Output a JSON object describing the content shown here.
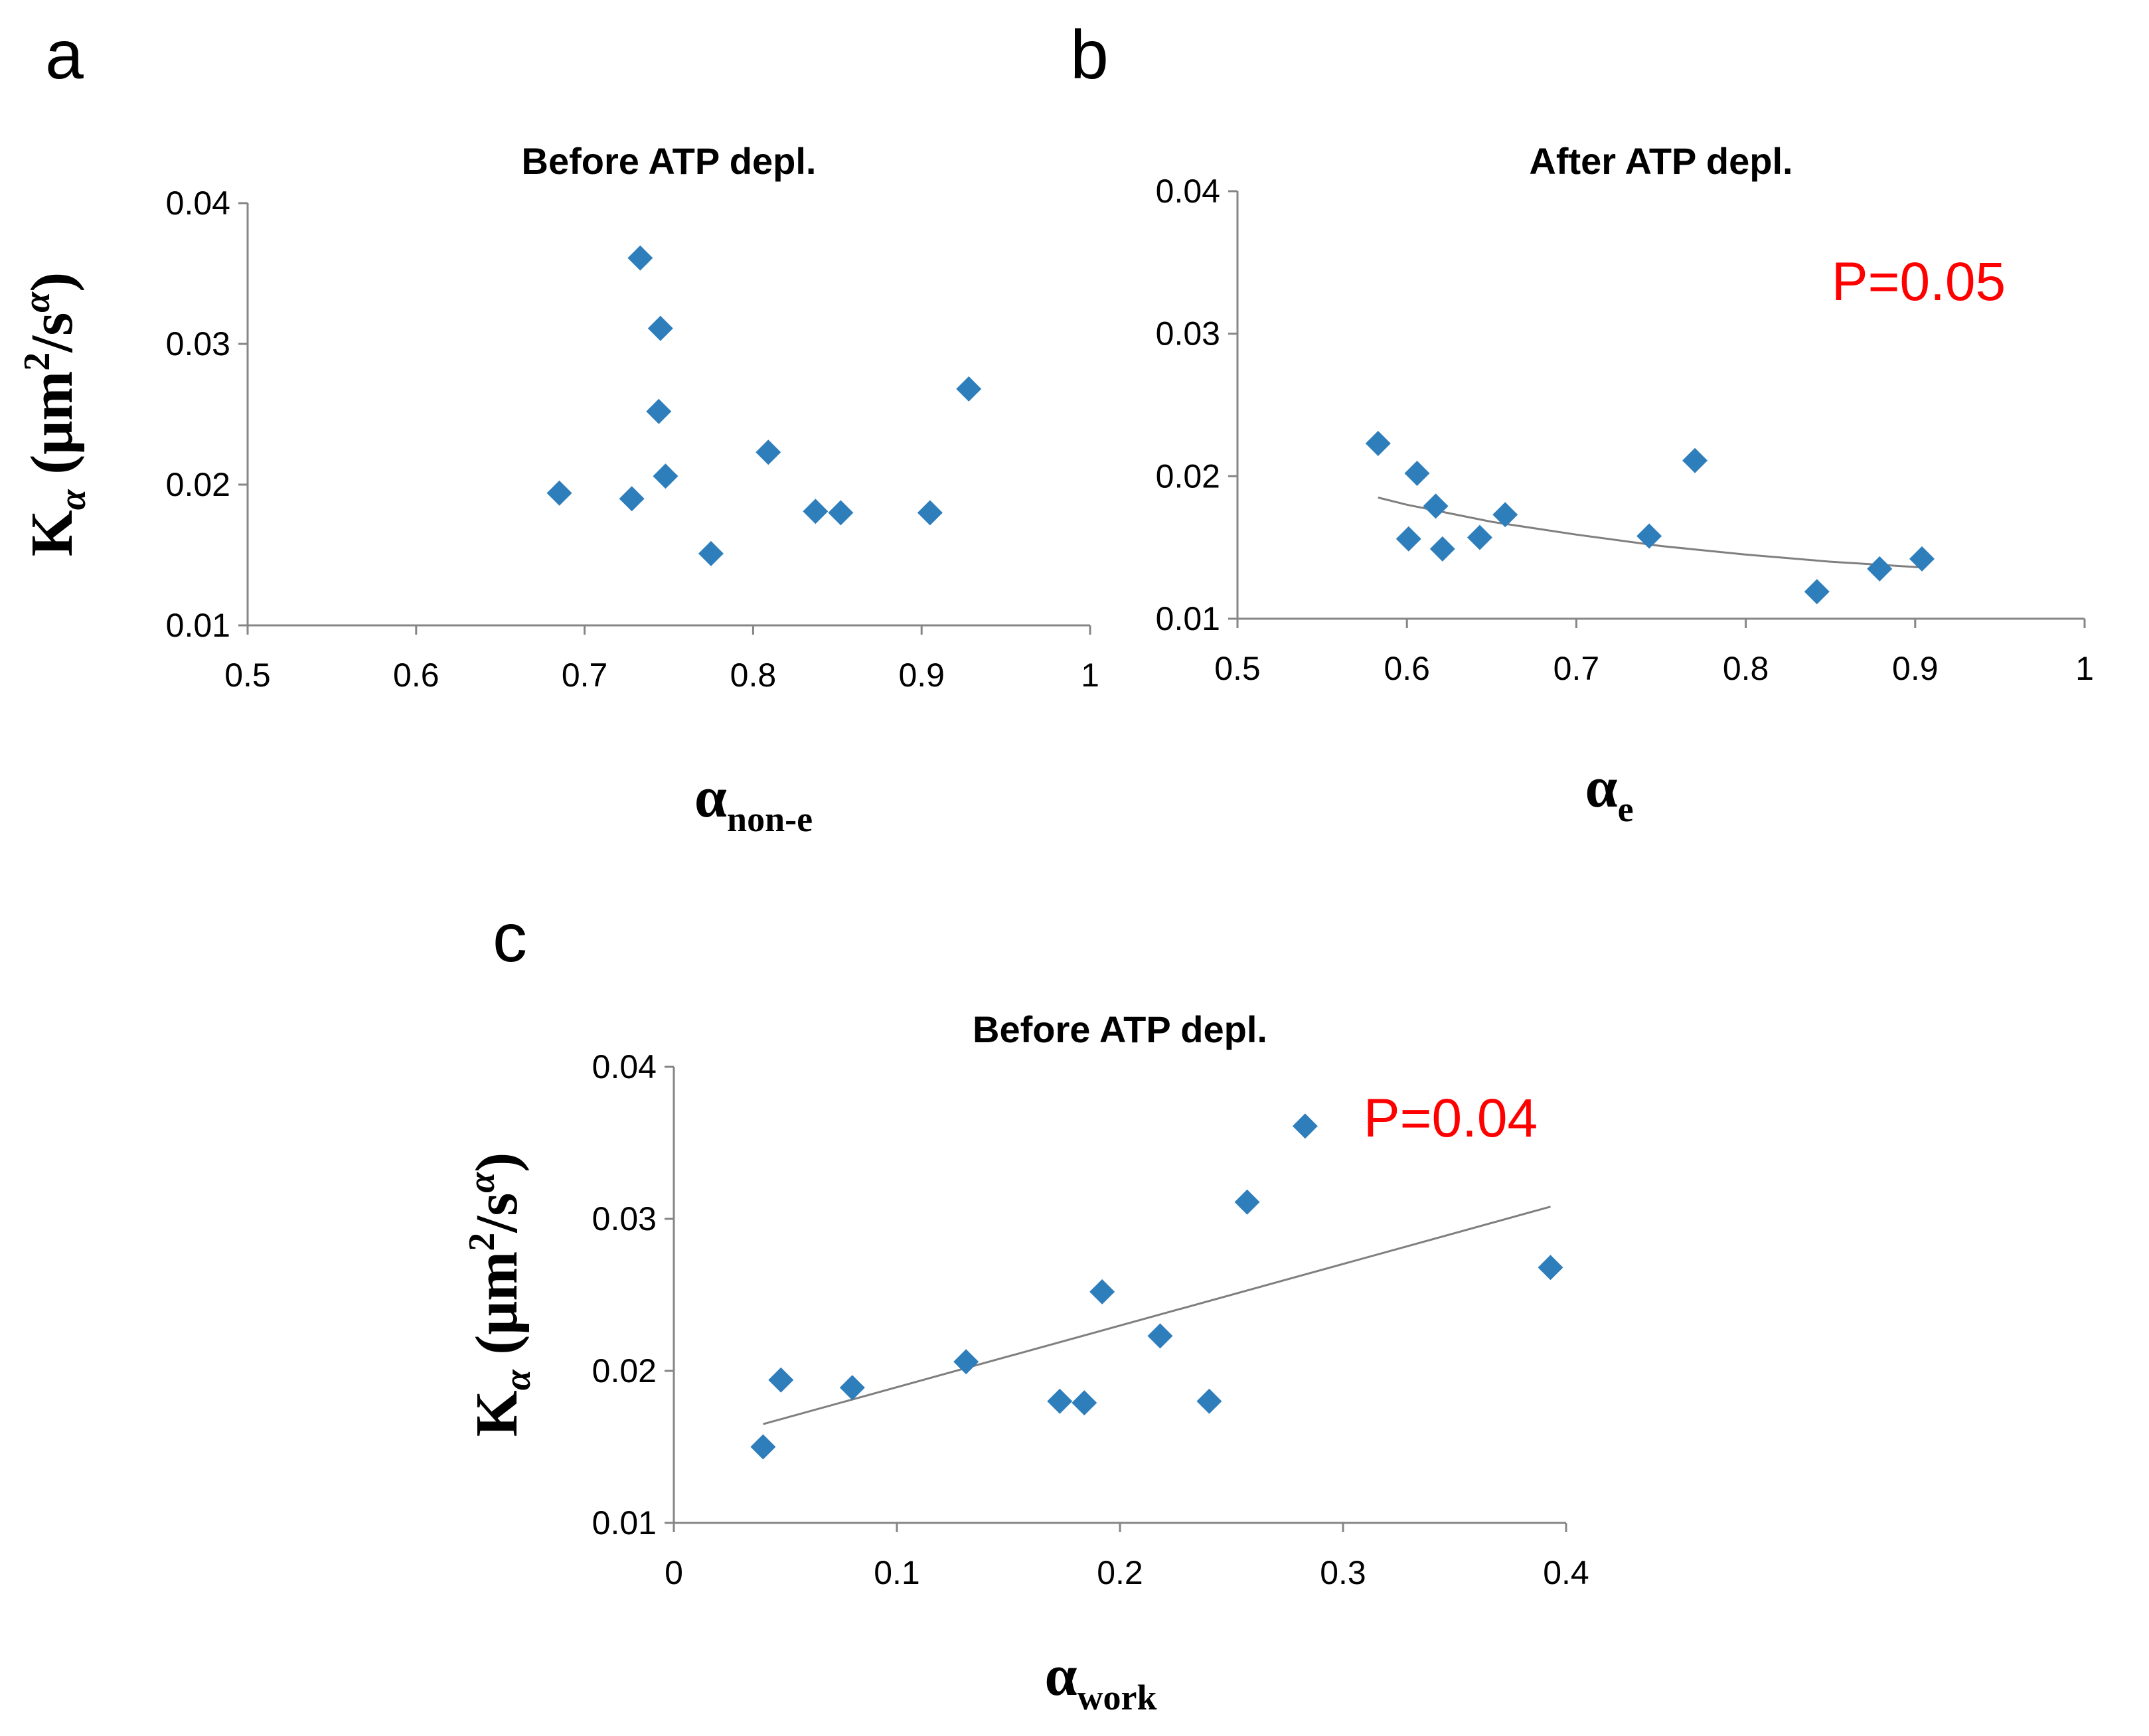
{
  "colors": {
    "marker": "#2e7ebc",
    "trend": "#7f7f7f",
    "annotation": "#ff0000",
    "axis": "#868686"
  },
  "chart_data": [
    {
      "panel": "a",
      "type": "scatter",
      "title": "Before ATP depl.",
      "xlabel": {
        "main": "α",
        "sub": "non-e"
      },
      "ylabel": {
        "main": "K",
        "sub": "α",
        "unit_open": " (μm",
        "unit_sup": "2",
        "unit_mid": "/s",
        "unit_sup2": "α",
        "unit_close": ")"
      },
      "xlim": [
        0.5,
        1
      ],
      "ylim": [
        0.01,
        0.04
      ],
      "xticks": [
        0.5,
        0.6,
        0.7,
        0.8,
        0.9,
        1
      ],
      "yticks": [
        0.01,
        0.02,
        0.03,
        0.04
      ],
      "xtick_labels": [
        "0.5",
        "0.6",
        "0.7",
        "0.8",
        "0.9",
        "1"
      ],
      "ytick_labels": [
        "0.01",
        "0.02",
        "0.03",
        "0.04"
      ],
      "points": [
        {
          "x": 0.685,
          "y": 0.0194
        },
        {
          "x": 0.728,
          "y": 0.019
        },
        {
          "x": 0.733,
          "y": 0.0361
        },
        {
          "x": 0.745,
          "y": 0.0311
        },
        {
          "x": 0.744,
          "y": 0.0252
        },
        {
          "x": 0.748,
          "y": 0.0206
        },
        {
          "x": 0.775,
          "y": 0.0151
        },
        {
          "x": 0.809,
          "y": 0.0223
        },
        {
          "x": 0.837,
          "y": 0.0181
        },
        {
          "x": 0.852,
          "y": 0.018
        },
        {
          "x": 0.905,
          "y": 0.018
        },
        {
          "x": 0.928,
          "y": 0.0268
        }
      ],
      "trendline": null,
      "annotation": null
    },
    {
      "panel": "b",
      "type": "scatter",
      "title": "After ATP depl.",
      "xlabel": {
        "main": "α",
        "sub": "e"
      },
      "ylabel": null,
      "xlim": [
        0.5,
        1
      ],
      "ylim": [
        0.01,
        0.04
      ],
      "xticks": [
        0.5,
        0.6,
        0.7,
        0.8,
        0.9,
        1
      ],
      "yticks": [
        0.01,
        0.02,
        0.03,
        0.04
      ],
      "xtick_labels": [
        "0.5",
        "0.6",
        "0.7",
        "0.8",
        "0.9",
        "1"
      ],
      "ytick_labels": [
        "0.01",
        "0.02",
        "0.03",
        "0.04"
      ],
      "points": [
        {
          "x": 0.583,
          "y": 0.0223
        },
        {
          "x": 0.606,
          "y": 0.0202
        },
        {
          "x": 0.601,
          "y": 0.0156
        },
        {
          "x": 0.617,
          "y": 0.0179
        },
        {
          "x": 0.621,
          "y": 0.0149
        },
        {
          "x": 0.643,
          "y": 0.0157
        },
        {
          "x": 0.658,
          "y": 0.0173
        },
        {
          "x": 0.743,
          "y": 0.0158
        },
        {
          "x": 0.77,
          "y": 0.0211
        },
        {
          "x": 0.842,
          "y": 0.0119
        },
        {
          "x": 0.879,
          "y": 0.0135
        },
        {
          "x": 0.904,
          "y": 0.0142
        }
      ],
      "trendline": {
        "kind": "power",
        "x": [
          0.583,
          0.6,
          0.65,
          0.7,
          0.75,
          0.8,
          0.85,
          0.904
        ],
        "y": [
          0.0185,
          0.018,
          0.0168,
          0.0159,
          0.0151,
          0.0145,
          0.014,
          0.0136
        ]
      },
      "annotation": "P=0.05"
    },
    {
      "panel": "c",
      "type": "scatter",
      "title": "Before ATP depl.",
      "xlabel": {
        "main": "α",
        "sub": "work"
      },
      "ylabel": {
        "main": "K",
        "sub": "α",
        "unit_open": " (μm",
        "unit_sup": "2",
        "unit_mid": "/s",
        "unit_sup2": "α",
        "unit_close": ")"
      },
      "xlim": [
        0,
        0.4
      ],
      "ylim": [
        0.01,
        0.04
      ],
      "xticks": [
        0,
        0.1,
        0.2,
        0.3,
        0.4
      ],
      "yticks": [
        0.01,
        0.02,
        0.03,
        0.04
      ],
      "xtick_labels": [
        "0",
        "0.1",
        "0.2",
        "0.3",
        "0.4"
      ],
      "ytick_labels": [
        "0.01",
        "0.02",
        "0.03",
        "0.04"
      ],
      "points": [
        {
          "x": 0.04,
          "y": 0.015
        },
        {
          "x": 0.048,
          "y": 0.0194
        },
        {
          "x": 0.08,
          "y": 0.0189
        },
        {
          "x": 0.131,
          "y": 0.0206
        },
        {
          "x": 0.173,
          "y": 0.018
        },
        {
          "x": 0.184,
          "y": 0.0179
        },
        {
          "x": 0.192,
          "y": 0.0252
        },
        {
          "x": 0.218,
          "y": 0.0223
        },
        {
          "x": 0.24,
          "y": 0.018
        },
        {
          "x": 0.257,
          "y": 0.0311
        },
        {
          "x": 0.283,
          "y": 0.0361
        },
        {
          "x": 0.393,
          "y": 0.0268
        }
      ],
      "trendline": {
        "kind": "linear",
        "x": [
          0.04,
          0.393
        ],
        "y": [
          0.0165,
          0.0308
        ]
      },
      "annotation": "P=0.04"
    }
  ]
}
